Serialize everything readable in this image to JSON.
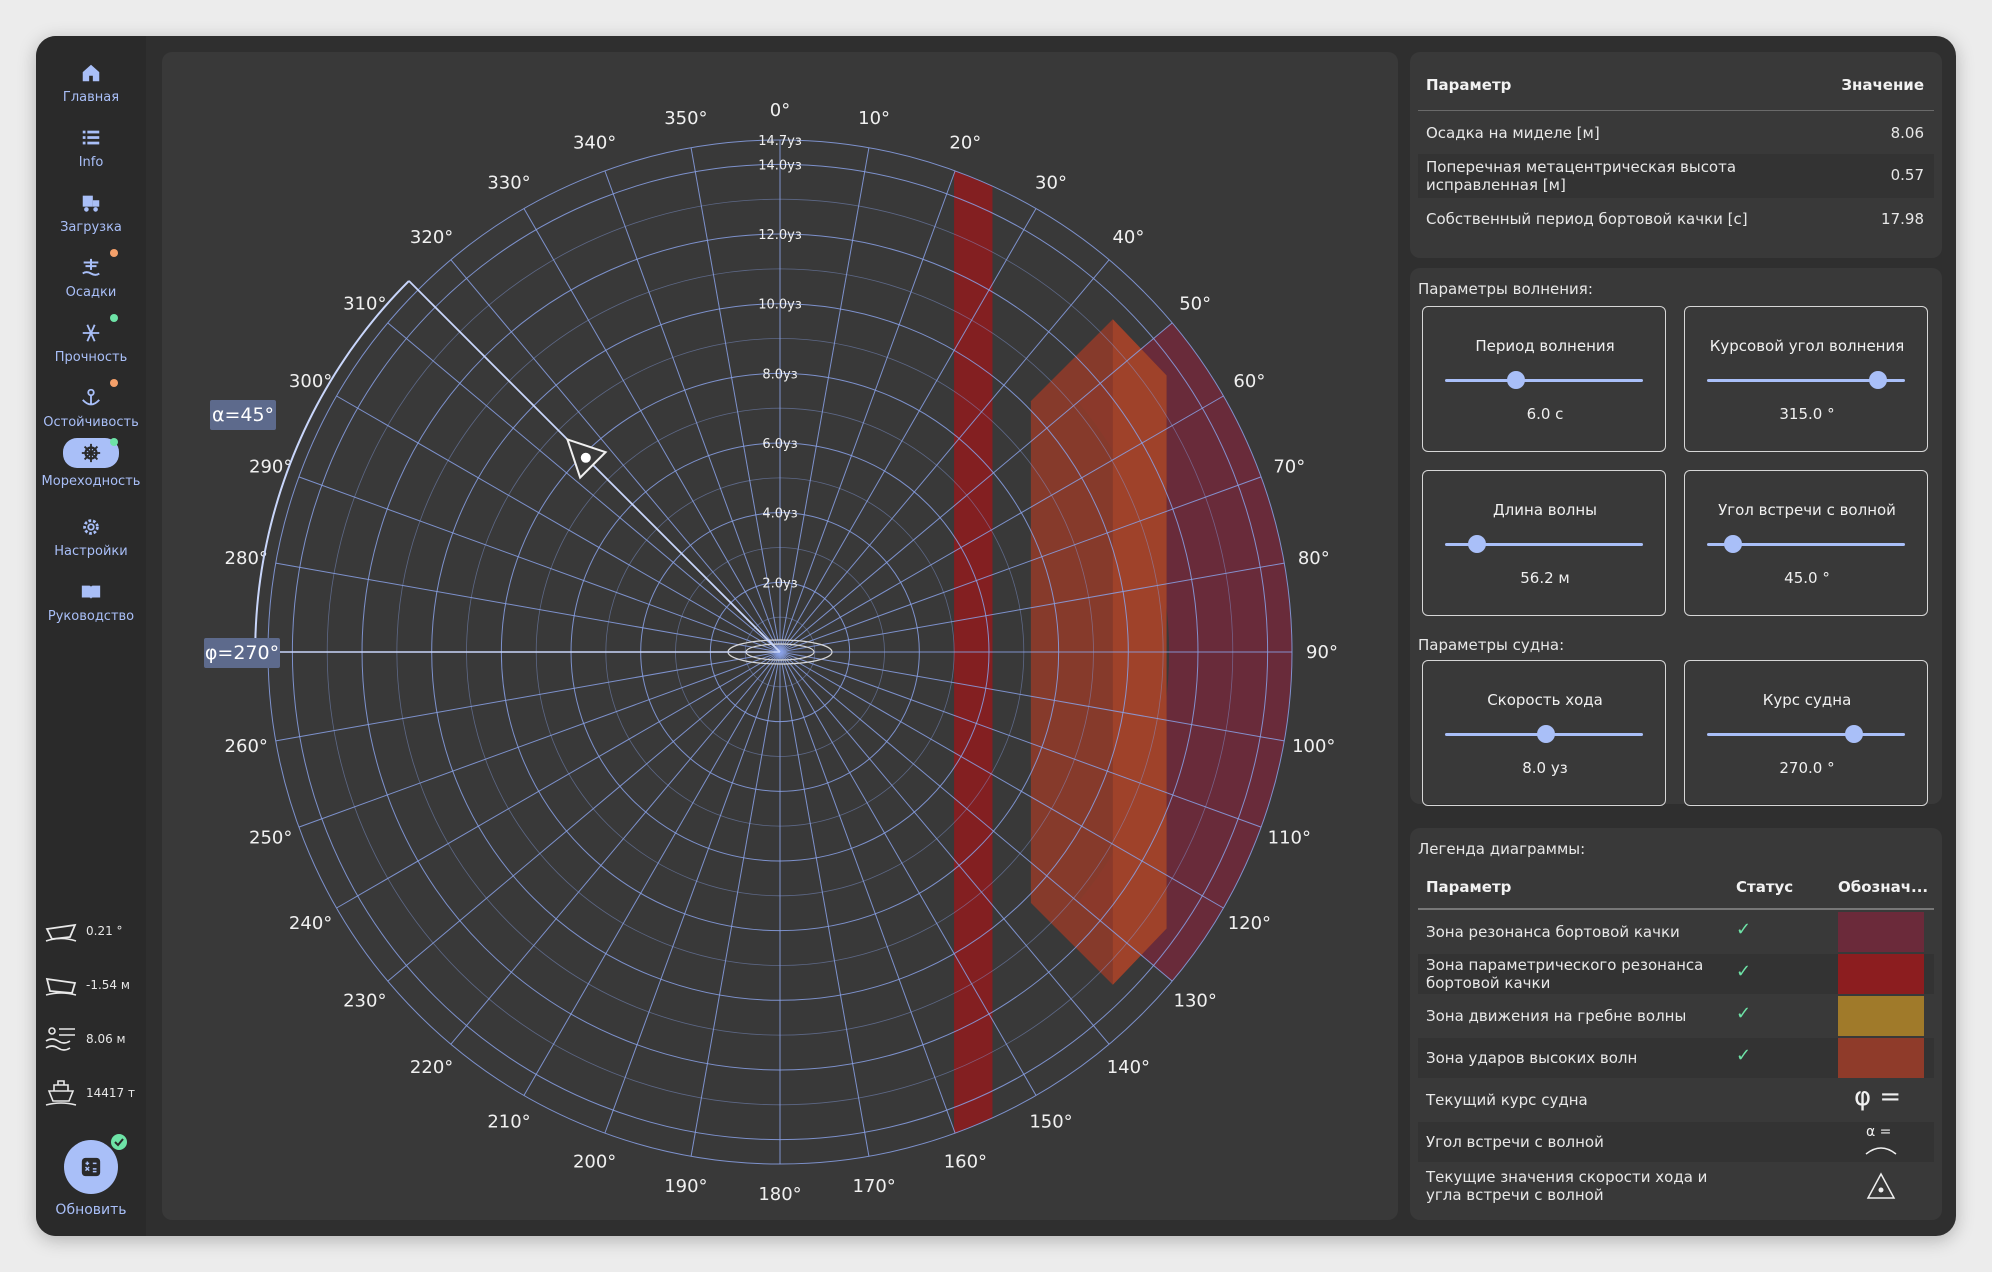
{
  "nav": {
    "items": [
      {
        "label": "Главная",
        "icon": "home-icon"
      },
      {
        "label": "Info",
        "icon": "list-icon"
      },
      {
        "label": "Загрузка",
        "icon": "cargo-icon"
      },
      {
        "label": "Осадки",
        "icon": "draft-icon"
      },
      {
        "label": "Прочность",
        "icon": "strength-icon"
      },
      {
        "label": "Остойчивость",
        "icon": "stability-icon"
      },
      {
        "label": "Мореходность",
        "icon": "seakeeping-icon"
      },
      {
        "label": "Настройки",
        "icon": "gear-icon"
      },
      {
        "label": "Руководство",
        "icon": "book-icon"
      }
    ],
    "active_index": 6
  },
  "status": {
    "heel": "0.21 °",
    "trim": "-1.54 м",
    "draft": "8.06 м",
    "displacement": "14417 т",
    "refresh_label": "Обновить"
  },
  "params_table": {
    "header_param": "Параметр",
    "header_value": "Значение",
    "rows": [
      {
        "label": "Осадка на миделе [м]",
        "value": "8.06"
      },
      {
        "label": "Поперечная метацентрическая высота исправленная [м]",
        "value": "0.57"
      },
      {
        "label": "Собственный период бортовой качки [с]",
        "value": "17.98"
      }
    ]
  },
  "wave": {
    "title": "Параметры волнения:",
    "period": {
      "label": "Период волнения",
      "value": "6.0 с",
      "fraction": 0.36
    },
    "heading_angle": {
      "label": "Курсовой угол волнения",
      "value": "315.0 °",
      "fraction": 0.87
    },
    "length": {
      "label": "Длина волны",
      "value": "56.2 м",
      "fraction": 0.16
    },
    "encounter_angle": {
      "label": "Угол встречи с волной",
      "value": "45.0 °",
      "fraction": 0.13
    }
  },
  "ship": {
    "title": "Параметры судна:",
    "speed": {
      "label": "Скорость хода",
      "value": "8.0 уз",
      "fraction": 0.51
    },
    "course": {
      "label": "Курс судна",
      "value": "270.0 °",
      "fraction": 0.75
    }
  },
  "legend": {
    "title": "Легенда диаграммы:",
    "header_param": "Параметр",
    "header_status": "Статус",
    "header_symbol": "Обознач...",
    "check": "✓",
    "rows": [
      {
        "label": "Зона резонанса бортовой качки",
        "color": "#6b2a3a"
      },
      {
        "label": "Зона параметрического резонанса бортовой качки",
        "color": "#8c1d1f"
      },
      {
        "label": "Зона движения на гребне волны",
        "color": "#a07a2a"
      },
      {
        "label": "Зона ударов высоких волн",
        "color": "#8f3b2a"
      },
      {
        "label": "Текущий курс судна",
        "symbol": "φ ="
      },
      {
        "label": "Угол встречи с волной",
        "symbol": "α ="
      },
      {
        "label": "Текущие значения скорости хода и угла встречи с волной"
      }
    ]
  },
  "chart_data": {
    "type": "polar",
    "angle_labels": [
      "0°",
      "10°",
      "20°",
      "30°",
      "40°",
      "50°",
      "60°",
      "70°",
      "80°",
      "90°",
      "100°",
      "110°",
      "120°",
      "130°",
      "140°",
      "150°",
      "160°",
      "170°",
      "180°",
      "190°",
      "200°",
      "210°",
      "220°",
      "230°",
      "240°",
      "250°",
      "260°",
      "270°",
      "280°",
      "290°",
      "300°",
      "310°",
      "320°",
      "330°",
      "340°",
      "350°"
    ],
    "radial_labels": [
      "2.0уз",
      "4.0уз",
      "6.0уз",
      "8.0уз",
      "10.0уз",
      "12.0уз",
      "14.0уз",
      "14.7уз"
    ],
    "radial_values": [
      2,
      4,
      6,
      8,
      10,
      12,
      14,
      14.7
    ],
    "r_max": 14.7,
    "course_deg": 270,
    "course_label": "φ=270°",
    "encounter_angle_deg": 45,
    "encounter_label": "α=45°",
    "wave_heading_deg": 315,
    "current_point": {
      "speed_knots": 8.0,
      "angle_deg": 315
    },
    "colors": {
      "grid": "#8aa1e6",
      "param_resonance": "#8c1d1f",
      "resonance": "#6b2a3a",
      "impact": "#8f3b2a",
      "crest": "#a0422a",
      "label_bg": "#5d6a8c"
    }
  }
}
